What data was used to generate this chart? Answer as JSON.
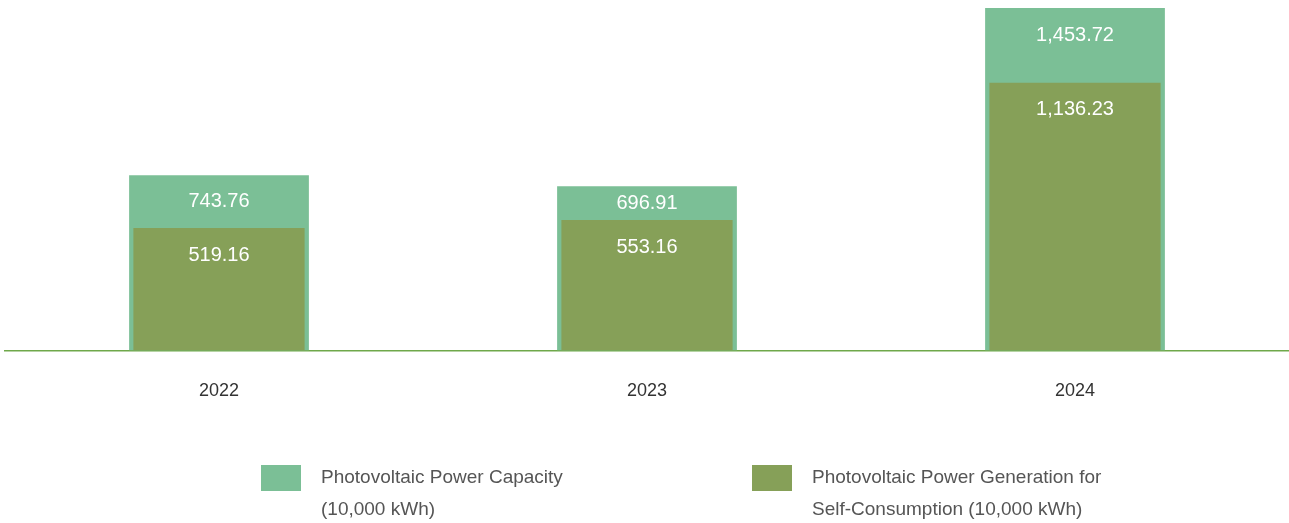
{
  "chart_data": {
    "type": "bar",
    "categories": [
      "2022",
      "2023",
      "2024"
    ],
    "series": [
      {
        "name": "Photovoltaic Power Capacity (10,000 kWh)",
        "color": "#7bbf96",
        "values": [
          743.76,
          696.91,
          1453.72
        ],
        "value_labels": [
          "743.76",
          "696.91",
          "1,453.72"
        ]
      },
      {
        "name": "Photovoltaic Power Generation for Self-Consumption (10,000 kWh)",
        "color": "#86a058",
        "values": [
          519.16,
          553.16,
          1136.23
        ],
        "value_labels": [
          "519.16",
          "553.16",
          "1,136.23"
        ]
      }
    ],
    "tick_labels": "x",
    "legend": "bottom",
    "grid": false
  }
}
